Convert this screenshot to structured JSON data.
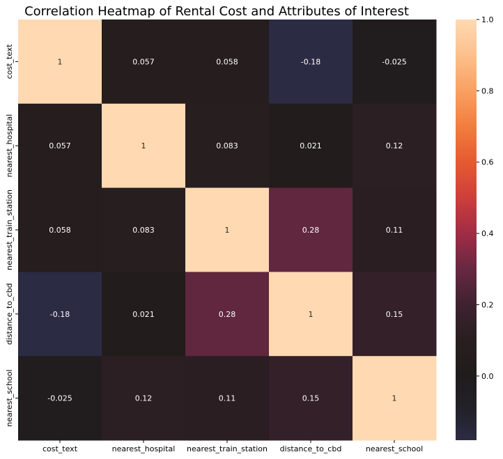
{
  "chart_data": {
    "type": "heatmap",
    "title": "Correlation Heatmap of Rental Cost and Attributes of Interest",
    "xlabel": "",
    "ylabel": "",
    "x_categories": [
      "cost_text",
      "nearest_hospital",
      "nearest_train_station",
      "distance_to_cbd",
      "nearest_school"
    ],
    "y_categories": [
      "cost_text",
      "nearest_hospital",
      "nearest_train_station",
      "distance_to_cbd",
      "nearest_school"
    ],
    "values": [
      [
        1,
        0.057,
        0.058,
        -0.18,
        -0.025
      ],
      [
        0.057,
        1,
        0.083,
        0.021,
        0.12
      ],
      [
        0.058,
        0.083,
        1,
        0.28,
        0.11
      ],
      [
        -0.18,
        0.021,
        0.28,
        1,
        0.15
      ],
      [
        -0.025,
        0.12,
        0.11,
        0.15,
        1
      ]
    ],
    "cell_labels": [
      [
        "1",
        "0.057",
        "0.058",
        "-0.18",
        "-0.025"
      ],
      [
        "0.057",
        "1",
        "0.083",
        "0.021",
        "0.12"
      ],
      [
        "0.058",
        "0.083",
        "1",
        "0.28",
        "0.11"
      ],
      [
        "-0.18",
        "0.021",
        "0.28",
        "1",
        "0.15"
      ],
      [
        "-0.025",
        "0.12",
        "0.11",
        "0.15",
        "1"
      ]
    ],
    "colormap": "icefire-centered-at-0",
    "colorbar": {
      "range": [
        -0.18,
        1.0
      ],
      "ticks": [
        0.0,
        0.2,
        0.4,
        0.6,
        0.8,
        1.0
      ],
      "tick_labels": [
        "0.0",
        "0.2",
        "0.4",
        "0.6",
        "0.8",
        "1.0"
      ]
    }
  }
}
